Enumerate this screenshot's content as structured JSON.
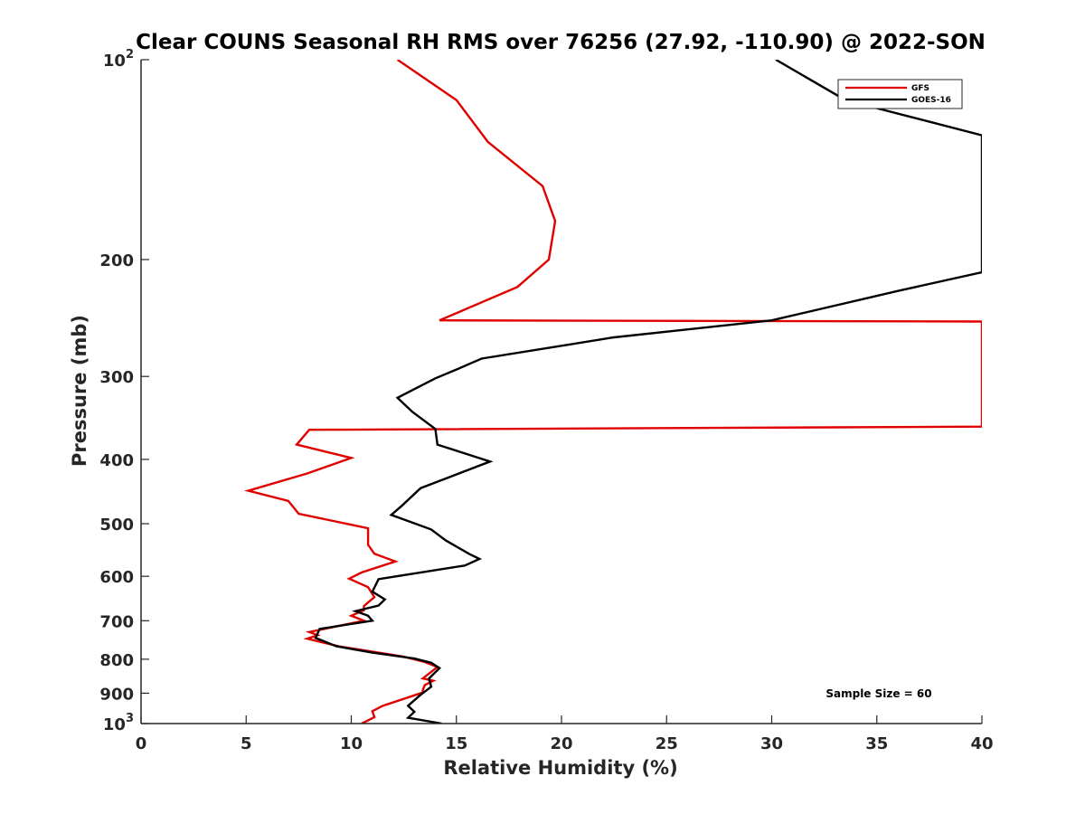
{
  "chart_data": {
    "type": "line",
    "title": "Clear COUNS Seasonal RH RMS over 76256 (27.92, -110.90) @ 2022-SON",
    "xlabel": "Relative Humidity (%)",
    "ylabel": "Pressure (mb)",
    "xlim": [
      0,
      40
    ],
    "ylim": [
      100,
      1000
    ],
    "yscale": "log",
    "y_reversed": true,
    "x_ticks": [
      0,
      5,
      10,
      15,
      20,
      25,
      30,
      35,
      40
    ],
    "x_tick_labels": [
      "0",
      "5",
      "10",
      "15",
      "20",
      "25",
      "30",
      "35",
      "40"
    ],
    "y_ticks": [
      100,
      200,
      300,
      400,
      500,
      600,
      700,
      800,
      900,
      1000
    ],
    "y_tick_labels": [
      {
        "base": "10",
        "exp": "2"
      },
      {
        "base": "200"
      },
      {
        "base": "300"
      },
      {
        "base": "400"
      },
      {
        "base": "500"
      },
      {
        "base": "600"
      },
      {
        "base": "700"
      },
      {
        "base": "800"
      },
      {
        "base": "900"
      },
      {
        "base": "10",
        "exp": "3"
      }
    ],
    "legend_position": "top-right",
    "annotation": "Sample Size = 60",
    "series": [
      {
        "name": "GFS",
        "color": "#e00000",
        "points": [
          [
            12.2,
            100
          ],
          [
            15.0,
            115
          ],
          [
            16.5,
            133
          ],
          [
            19.1,
            155
          ],
          [
            19.7,
            175
          ],
          [
            19.4,
            200
          ],
          [
            17.9,
            220
          ],
          [
            14.2,
            247
          ],
          [
            40.0,
            248
          ],
          [
            40.0,
            357
          ],
          [
            8.0,
            361
          ],
          [
            7.4,
            380
          ],
          [
            10.0,
            398
          ],
          [
            7.9,
            420
          ],
          [
            5.1,
            446
          ],
          [
            7.0,
            462
          ],
          [
            7.5,
            483
          ],
          [
            10.8,
            508
          ],
          [
            10.8,
            538
          ],
          [
            11.1,
            555
          ],
          [
            12.1,
            570
          ],
          [
            10.5,
            592
          ],
          [
            9.9,
            605
          ],
          [
            10.8,
            623
          ],
          [
            11.1,
            645
          ],
          [
            10.6,
            665
          ],
          [
            10.6,
            675
          ],
          [
            10.0,
            688
          ],
          [
            10.6,
            700
          ],
          [
            8.0,
            728
          ],
          [
            8.4,
            736
          ],
          [
            7.9,
            745
          ],
          [
            9.4,
            765
          ],
          [
            12.5,
            793
          ],
          [
            13.5,
            808
          ],
          [
            14.1,
            822
          ],
          [
            13.4,
            855
          ],
          [
            13.9,
            862
          ],
          [
            13.5,
            875
          ],
          [
            13.4,
            890
          ],
          [
            13.4,
            898
          ],
          [
            11.5,
            940
          ],
          [
            11.0,
            958
          ],
          [
            11.1,
            978
          ],
          [
            10.5,
            1000
          ]
        ]
      },
      {
        "name": "GOES-16",
        "color": "#000000",
        "points": [
          [
            30.2,
            100
          ],
          [
            33.5,
            115
          ],
          [
            40.0,
            130
          ],
          [
            40.0,
            209
          ],
          [
            36.0,
            223
          ],
          [
            30.0,
            247
          ],
          [
            22.5,
            262
          ],
          [
            16.2,
            282
          ],
          [
            15.1,
            292
          ],
          [
            14.0,
            302
          ],
          [
            12.2,
            323
          ],
          [
            12.9,
            339
          ],
          [
            14.0,
            360
          ],
          [
            14.1,
            380
          ],
          [
            16.6,
            403
          ],
          [
            14.7,
            425
          ],
          [
            13.3,
            442
          ],
          [
            12.4,
            470
          ],
          [
            11.9,
            485
          ],
          [
            13.8,
            510
          ],
          [
            14.5,
            530
          ],
          [
            15.6,
            555
          ],
          [
            16.1,
            565
          ],
          [
            15.4,
            578
          ],
          [
            11.3,
            606
          ],
          [
            11.0,
            633
          ],
          [
            11.6,
            650
          ],
          [
            11.3,
            664
          ],
          [
            10.2,
            677
          ],
          [
            10.8,
            688
          ],
          [
            11.0,
            700
          ],
          [
            8.5,
            720
          ],
          [
            8.3,
            743
          ],
          [
            9.3,
            765
          ],
          [
            11.0,
            782
          ],
          [
            13.0,
            798
          ],
          [
            13.8,
            810
          ],
          [
            14.2,
            825
          ],
          [
            13.7,
            855
          ],
          [
            13.8,
            880
          ],
          [
            13.3,
            905
          ],
          [
            12.7,
            940
          ],
          [
            13.0,
            960
          ],
          [
            12.7,
            980
          ],
          [
            14.3,
            1000
          ]
        ]
      }
    ]
  }
}
